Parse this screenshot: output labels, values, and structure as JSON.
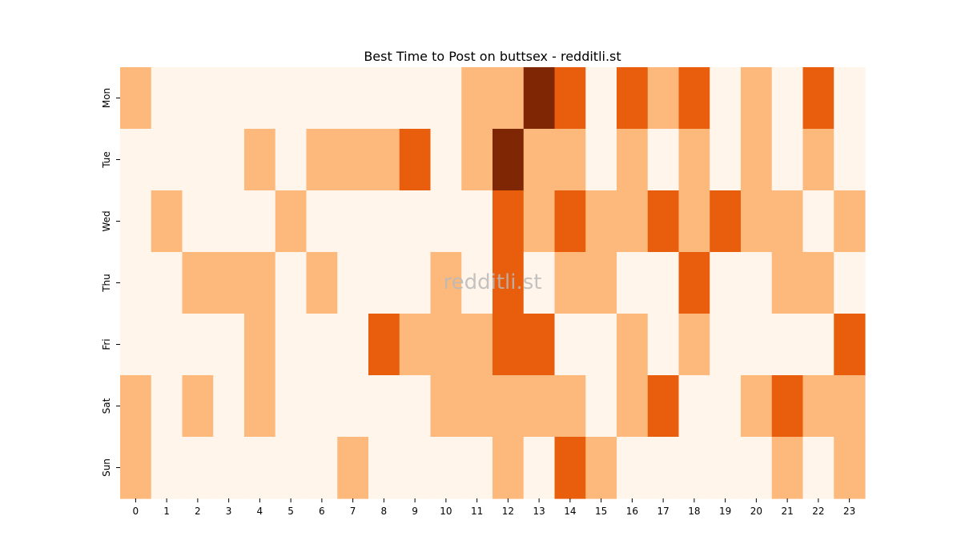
{
  "chart_data": {
    "type": "heatmap",
    "title": "Best Time to Post on buttsex - redditli.st",
    "xlabel": "",
    "ylabel": "",
    "x_ticks": [
      "0",
      "1",
      "2",
      "3",
      "4",
      "5",
      "6",
      "7",
      "8",
      "9",
      "10",
      "11",
      "12",
      "13",
      "14",
      "15",
      "16",
      "17",
      "18",
      "19",
      "20",
      "21",
      "22",
      "23"
    ],
    "y_ticks": [
      "Mon",
      "Tue",
      "Wed",
      "Thu",
      "Fri",
      "Sat",
      "Sun"
    ],
    "colorbar": false,
    "color_scale": [
      "#fff5eb",
      "#fdb87b",
      "#e95e0d",
      "#7f2704"
    ],
    "values": [
      [
        1,
        0,
        0,
        0,
        0,
        0,
        0,
        0,
        0,
        0,
        0,
        1,
        1,
        3,
        2,
        0,
        2,
        1,
        2,
        0,
        1,
        0,
        2,
        0
      ],
      [
        0,
        0,
        0,
        0,
        1,
        0,
        1,
        1,
        1,
        2,
        0,
        1,
        3,
        1,
        1,
        0,
        1,
        0,
        1,
        0,
        1,
        0,
        1,
        0
      ],
      [
        0,
        1,
        0,
        0,
        0,
        1,
        0,
        0,
        0,
        0,
        0,
        0,
        2,
        1,
        2,
        1,
        1,
        2,
        1,
        2,
        1,
        1,
        0,
        1
      ],
      [
        0,
        0,
        1,
        1,
        1,
        0,
        1,
        0,
        0,
        0,
        1,
        0,
        2,
        0,
        1,
        1,
        0,
        0,
        2,
        0,
        0,
        1,
        1,
        0
      ],
      [
        0,
        0,
        0,
        0,
        1,
        0,
        0,
        0,
        2,
        1,
        1,
        1,
        2,
        2,
        0,
        0,
        1,
        0,
        1,
        0,
        0,
        0,
        0,
        2
      ],
      [
        1,
        0,
        1,
        0,
        1,
        0,
        0,
        0,
        0,
        0,
        1,
        1,
        1,
        1,
        1,
        0,
        1,
        2,
        0,
        0,
        1,
        2,
        1,
        1
      ],
      [
        1,
        0,
        0,
        0,
        0,
        0,
        0,
        1,
        0,
        0,
        0,
        0,
        1,
        0,
        2,
        1,
        0,
        0,
        0,
        0,
        0,
        1,
        0,
        1
      ]
    ],
    "watermark": "redditli.st"
  }
}
